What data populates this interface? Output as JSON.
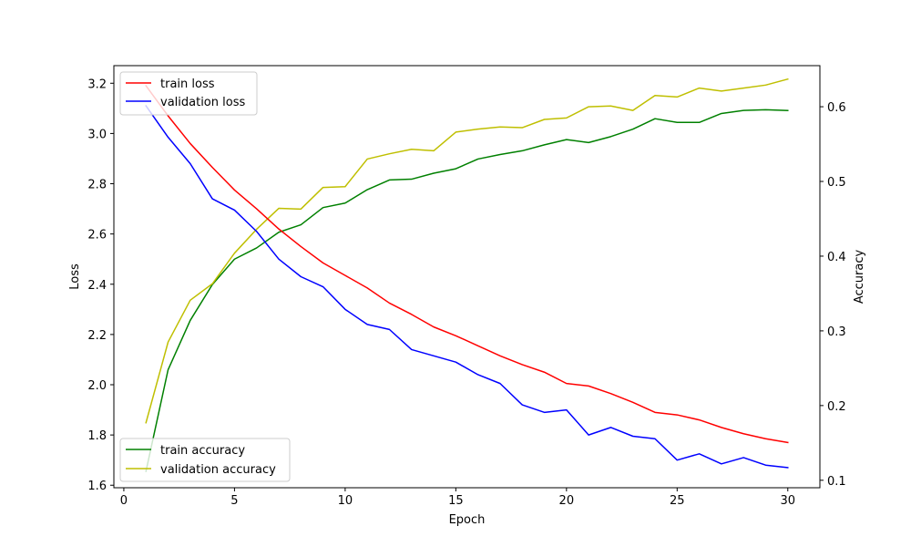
{
  "chart_data": {
    "type": "line",
    "title": "",
    "xlabel": "Epoch",
    "ylabel_left": "Loss",
    "ylabel_right": "Accuracy",
    "xlim": [
      -0.45,
      31.45
    ],
    "ylim_left": [
      1.59,
      3.27
    ],
    "ylim_right": [
      0.09,
      0.655
    ],
    "x_ticks": [
      0,
      5,
      10,
      15,
      20,
      25,
      30
    ],
    "y_ticks_left": [
      1.6,
      1.8,
      2.0,
      2.2,
      2.4,
      2.6,
      2.8,
      3.0,
      3.2
    ],
    "y_ticks_right": [
      0.1,
      0.2,
      0.3,
      0.4,
      0.5,
      0.6
    ],
    "grid": false,
    "x": [
      1,
      2,
      3,
      4,
      5,
      6,
      7,
      8,
      9,
      10,
      11,
      12,
      13,
      14,
      15,
      16,
      17,
      18,
      19,
      20,
      21,
      22,
      23,
      24,
      25,
      26,
      27,
      28,
      29,
      30
    ],
    "loss_series": [
      {
        "name": "train loss",
        "color": "#ff0000",
        "values": [
          3.19,
          3.07,
          2.96,
          2.865,
          2.775,
          2.7,
          2.62,
          2.55,
          2.485,
          2.435,
          2.385,
          2.325,
          2.28,
          2.23,
          2.195,
          2.155,
          2.115,
          2.08,
          2.05,
          2.005,
          1.995,
          1.965,
          1.93,
          1.89,
          1.88,
          1.86,
          1.83,
          1.805,
          1.785,
          1.77
        ]
      },
      {
        "name": "validation loss",
        "color": "#0000ff",
        "values": [
          3.11,
          2.985,
          2.88,
          2.74,
          2.695,
          2.61,
          2.5,
          2.43,
          2.39,
          2.3,
          2.24,
          2.22,
          2.14,
          2.115,
          2.09,
          2.04,
          2.005,
          1.92,
          1.89,
          1.9,
          1.8,
          1.83,
          1.795,
          1.785,
          1.7,
          1.725,
          1.685,
          1.71,
          1.68,
          1.67
        ]
      }
    ],
    "accuracy_series": [
      {
        "name": "train accuracy",
        "color": "#008000",
        "values": [
          0.112,
          0.248,
          0.314,
          0.362,
          0.396,
          0.411,
          0.432,
          0.442,
          0.465,
          0.471,
          0.489,
          0.502,
          0.503,
          0.511,
          0.517,
          0.53,
          0.536,
          0.541,
          0.549,
          0.556,
          0.552,
          0.56,
          0.57,
          0.584,
          0.579,
          0.579,
          0.591,
          0.595,
          0.596,
          0.595
        ]
      },
      {
        "name": "validation accuracy",
        "color": "#bfbf00",
        "values": [
          0.177,
          0.285,
          0.341,
          0.363,
          0.404,
          0.436,
          0.464,
          0.463,
          0.492,
          0.493,
          0.53,
          0.537,
          0.543,
          0.541,
          0.566,
          0.57,
          0.573,
          0.572,
          0.583,
          0.585,
          0.6,
          0.601,
          0.595,
          0.615,
          0.613,
          0.625,
          0.621,
          0.625,
          0.629,
          0.637
        ]
      }
    ],
    "legend_top": {
      "position": "upper-left",
      "entries": [
        "train loss",
        "validation loss"
      ]
    },
    "legend_bottom": {
      "position": "lower-left",
      "entries": [
        "train accuracy",
        "validation accuracy"
      ]
    }
  }
}
